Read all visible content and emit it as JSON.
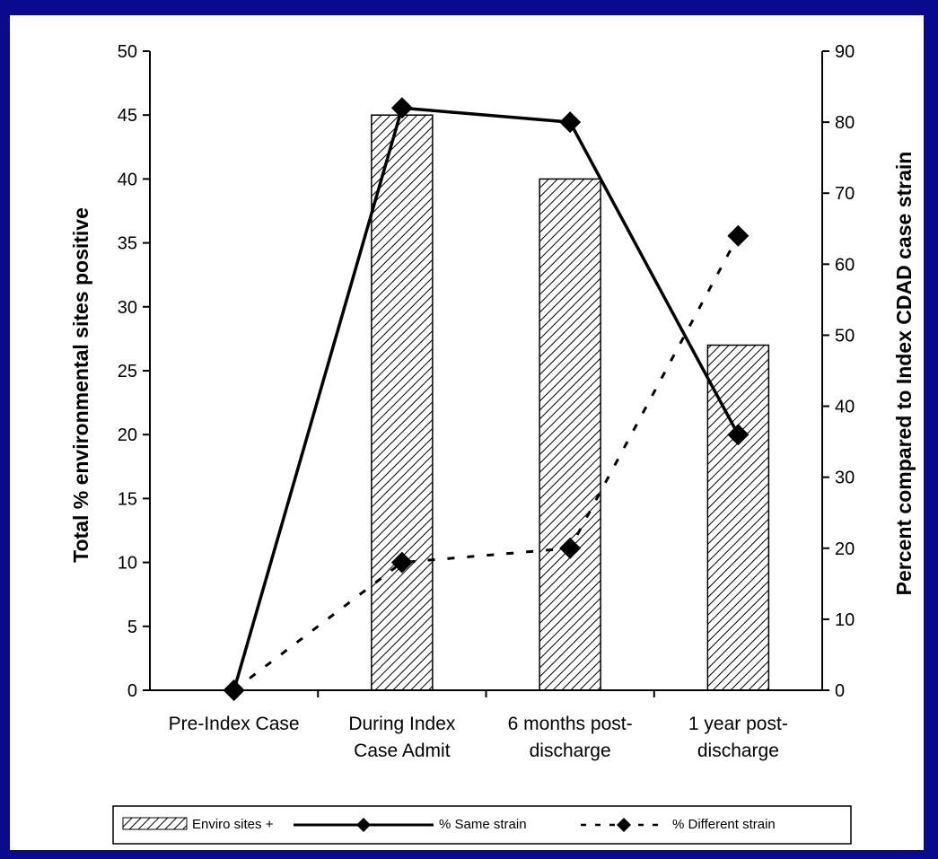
{
  "colors": {
    "background": "#0a0a8f",
    "panel": "#ffffff",
    "ink": "#000000"
  },
  "chart_data": {
    "type": "bar",
    "categories": [
      [
        "Pre-Index Case"
      ],
      [
        "During Index",
        "Case Admit"
      ],
      [
        "6 months post-",
        "discharge"
      ],
      [
        "1 year post-",
        "discharge"
      ]
    ],
    "ylabel": "Total % environmental sites positive",
    "y2label": "Percent compared to Index CDAD case strain",
    "ylim": [
      0,
      50
    ],
    "yticks": [
      0,
      5,
      10,
      15,
      20,
      25,
      30,
      35,
      40,
      45,
      50
    ],
    "y2lim": [
      0,
      90
    ],
    "y2ticks": [
      0,
      10,
      20,
      30,
      40,
      50,
      60,
      70,
      80,
      90
    ],
    "grid": false,
    "legend_position": "bottom",
    "series": [
      {
        "name": "Enviro sites +",
        "type": "bar",
        "axis": "left",
        "pattern": "diagonal-hatch",
        "values": [
          0,
          45,
          40,
          27
        ]
      },
      {
        "name": "% Same strain",
        "type": "line",
        "axis": "right",
        "style": "solid",
        "marker": "diamond",
        "values": [
          0,
          82,
          80,
          36
        ]
      },
      {
        "name": "% Different strain",
        "type": "line",
        "axis": "right",
        "style": "dashed",
        "marker": "diamond",
        "values": [
          0,
          18,
          20,
          64
        ]
      }
    ]
  }
}
